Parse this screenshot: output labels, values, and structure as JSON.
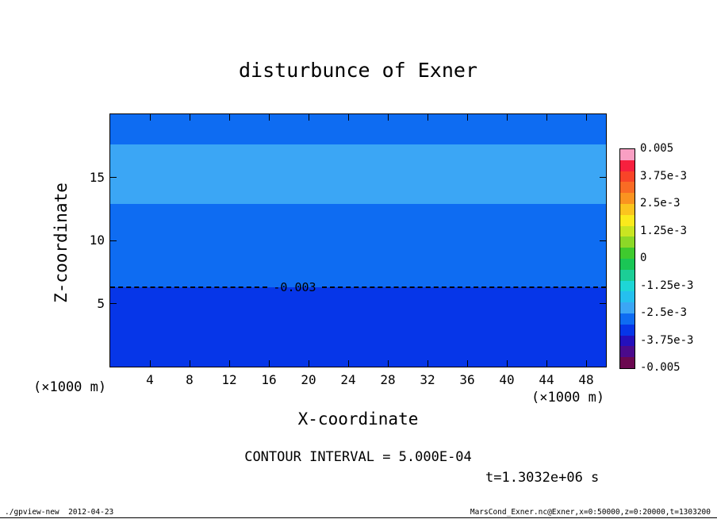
{
  "title": "disturbunce of Exner",
  "axes": {
    "x_label": "X-coordinate",
    "z_label": "Z-coordinate",
    "x_unit": "(×1000 m)",
    "z_unit": "(×1000 m)"
  },
  "contour": {
    "line_label": "-0.003",
    "interval_text": "CONTOUR INTERVAL = 5.000E-04"
  },
  "time_label": "t=1.3032e+06 s",
  "footer": {
    "left": "./gpview-new  2012-04-23",
    "right": "MarsCond_Exner.nc@Exner,x=0:50000,z=0:20000,t=1303200"
  },
  "colorbar": {
    "labels_top_to_bottom": [
      "0.005",
      "3.75e-3",
      "2.5e-3",
      "1.25e-3",
      "0",
      "-1.25e-3",
      "-2.5e-3",
      "-3.75e-3",
      "-0.005"
    ],
    "min": -0.005,
    "max": 0.005
  },
  "chart_data": {
    "type": "heatmap",
    "title": "disturbunce of Exner",
    "xlabel": "X-coordinate (×1000 m)",
    "ylabel": "Z-coordinate (×1000 m)",
    "xlim": [
      0,
      50
    ],
    "zlim": [
      0,
      20
    ],
    "x_ticks": [
      4,
      8,
      12,
      16,
      20,
      24,
      28,
      32,
      36,
      40,
      44,
      48
    ],
    "z_ticks": [
      5,
      10,
      15
    ],
    "grid": false,
    "legend_position": "right-colorbar",
    "contour_interval": 0.0005,
    "colorbar_range": [
      -0.005,
      0.005
    ],
    "dashed_contour": {
      "value": -0.003,
      "z": 6.3,
      "style": "dashed"
    },
    "bands": [
      {
        "z_from": 0,
        "z_to": 6.3,
        "value_from": -0.0035,
        "value_to": -0.003,
        "color": "#0636E8"
      },
      {
        "z_from": 6.3,
        "z_to": 12.9,
        "value_from": -0.003,
        "value_to": -0.0025,
        "color": "#0E6CF2"
      },
      {
        "z_from": 12.9,
        "z_to": 17.6,
        "value_from": -0.0025,
        "value_to": -0.002,
        "color": "#3BA6F5"
      },
      {
        "z_from": 17.6,
        "z_to": 20,
        "value_from": -0.003,
        "value_to": -0.0025,
        "color": "#0E6CF2"
      }
    ],
    "colorbar_colors_bottom_to_top": [
      "#6B0850",
      "#4B0A8C",
      "#2410BC",
      "#0636E8",
      "#0E6CF2",
      "#3BA6F5",
      "#25C0EE",
      "#1ED6D6",
      "#1CCE96",
      "#1AC655",
      "#3FCA2E",
      "#8CD827",
      "#C9E522",
      "#FBEA1C",
      "#FBC41E",
      "#FA9320",
      "#F96B24",
      "#F84428",
      "#F7203E",
      "#F99FC3"
    ],
    "time_text": "t=1.3032e+06 s"
  }
}
